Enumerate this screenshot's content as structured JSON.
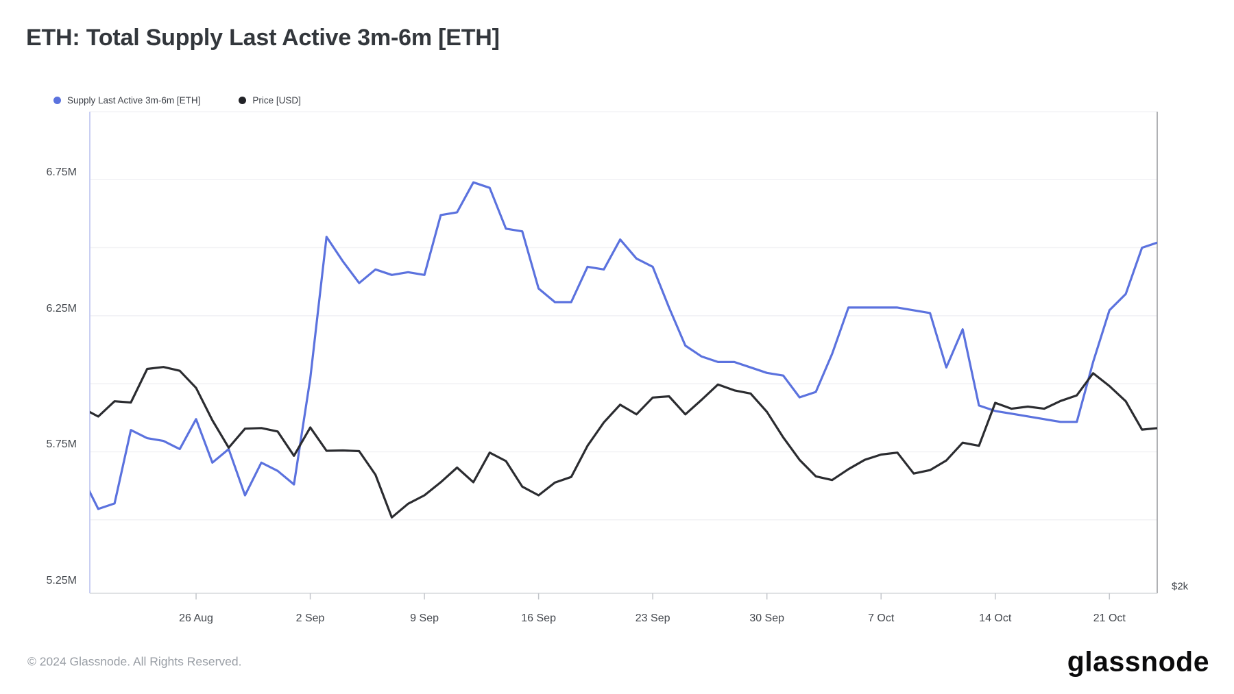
{
  "header": {
    "title": "ETH: Total Supply Last Active 3m-6m [ETH]"
  },
  "legend": [
    {
      "label": "Supply Last Active 3m-6m [ETH]",
      "color": "#5b72de"
    },
    {
      "label": "Price [USD]",
      "color": "#222327"
    }
  ],
  "footer": {
    "copyright": "© 2024 Glassnode. All Rights Reserved.",
    "logo_text": "glassnode"
  },
  "chart_data": {
    "type": "line",
    "title": "ETH: Total Supply Last Active 3m-6m [ETH]",
    "grid": "horizontal-only",
    "legend_position": "top-left",
    "x": [
      "19 Aug",
      "20 Aug",
      "21 Aug",
      "22 Aug",
      "23 Aug",
      "24 Aug",
      "25 Aug",
      "26 Aug",
      "27 Aug",
      "28 Aug",
      "29 Aug",
      "30 Aug",
      "31 Aug",
      "1 Sep",
      "2 Sep",
      "3 Sep",
      "4 Sep",
      "5 Sep",
      "6 Sep",
      "7 Sep",
      "8 Sep",
      "9 Sep",
      "10 Sep",
      "11 Sep",
      "12 Sep",
      "13 Sep",
      "14 Sep",
      "15 Sep",
      "16 Sep",
      "17 Sep",
      "18 Sep",
      "19 Sep",
      "20 Sep",
      "21 Sep",
      "22 Sep",
      "23 Sep",
      "24 Sep",
      "25 Sep",
      "26 Sep",
      "27 Sep",
      "28 Sep",
      "29 Sep",
      "30 Sep",
      "1 Oct",
      "2 Oct",
      "3 Oct",
      "4 Oct",
      "5 Oct",
      "6 Oct",
      "7 Oct",
      "8 Oct",
      "9 Oct",
      "10 Oct",
      "11 Oct",
      "12 Oct",
      "13 Oct",
      "14 Oct",
      "15 Oct",
      "16 Oct",
      "17 Oct",
      "18 Oct",
      "19 Oct",
      "20 Oct",
      "21 Oct",
      "22 Oct",
      "23 Oct",
      "24 Oct"
    ],
    "series": [
      {
        "name": "Supply Last Active 3m-6m [ETH]",
        "color": "#5b72de",
        "axis": "left",
        "unit": "M ETH",
        "values": [
          5.66,
          5.54,
          5.56,
          5.83,
          5.8,
          5.79,
          5.76,
          5.87,
          5.71,
          5.76,
          5.59,
          5.71,
          5.68,
          5.63,
          6.02,
          6.54,
          6.45,
          6.37,
          6.42,
          6.4,
          6.41,
          6.4,
          6.62,
          6.63,
          6.74,
          6.72,
          6.57,
          6.56,
          6.35,
          6.3,
          6.3,
          6.43,
          6.42,
          6.53,
          6.46,
          6.43,
          6.28,
          6.14,
          6.1,
          6.08,
          6.08,
          6.06,
          6.04,
          6.03,
          5.95,
          5.97,
          6.11,
          6.28,
          6.28,
          6.28,
          6.28,
          6.27,
          6.26,
          6.06,
          6.2,
          5.92,
          5.9,
          5.89,
          5.88,
          5.87,
          5.86,
          5.86,
          6.08,
          6.27,
          6.33,
          6.5,
          6.52
        ]
      },
      {
        "name": "Price [USD]",
        "color": "#2b2c30",
        "axis": "right",
        "unit": "USD",
        "values": [
          2578,
          2550,
          2599,
          2595,
          2703,
          2709,
          2697,
          2642,
          2538,
          2450,
          2511,
          2513,
          2502,
          2424,
          2515,
          2440,
          2441,
          2439,
          2363,
          2226,
          2270,
          2297,
          2339,
          2386,
          2339,
          2434,
          2407,
          2325,
          2297,
          2338,
          2356,
          2456,
          2531,
          2588,
          2557,
          2611,
          2615,
          2557,
          2604,
          2653,
          2634,
          2624,
          2565,
          2483,
          2411,
          2358,
          2346,
          2381,
          2411,
          2428,
          2434,
          2367,
          2378,
          2409,
          2466,
          2456,
          2594,
          2575,
          2582,
          2575,
          2600,
          2618,
          2689,
          2648,
          2599,
          2508,
          2513
        ]
      }
    ],
    "left_axis": {
      "tick_labels": [
        "6.75M",
        "6.25M",
        "5.75M",
        "5.25M"
      ],
      "tick_values_M": [
        6.75,
        6.25,
        5.75,
        5.25
      ],
      "minor_gridline_step_M": 0.25,
      "range_M": [
        5.23,
        7.0
      ]
    },
    "right_axis": {
      "visible_label": "$2k",
      "label_value_usd": 2000,
      "range_usd": [
        1982,
        3529
      ]
    },
    "x_axis": {
      "tick_labels": [
        "26 Aug",
        "2 Sep",
        "9 Sep",
        "16 Sep",
        "23 Sep",
        "30 Sep",
        "7 Oct",
        "14 Oct",
        "21 Oct"
      ]
    }
  }
}
